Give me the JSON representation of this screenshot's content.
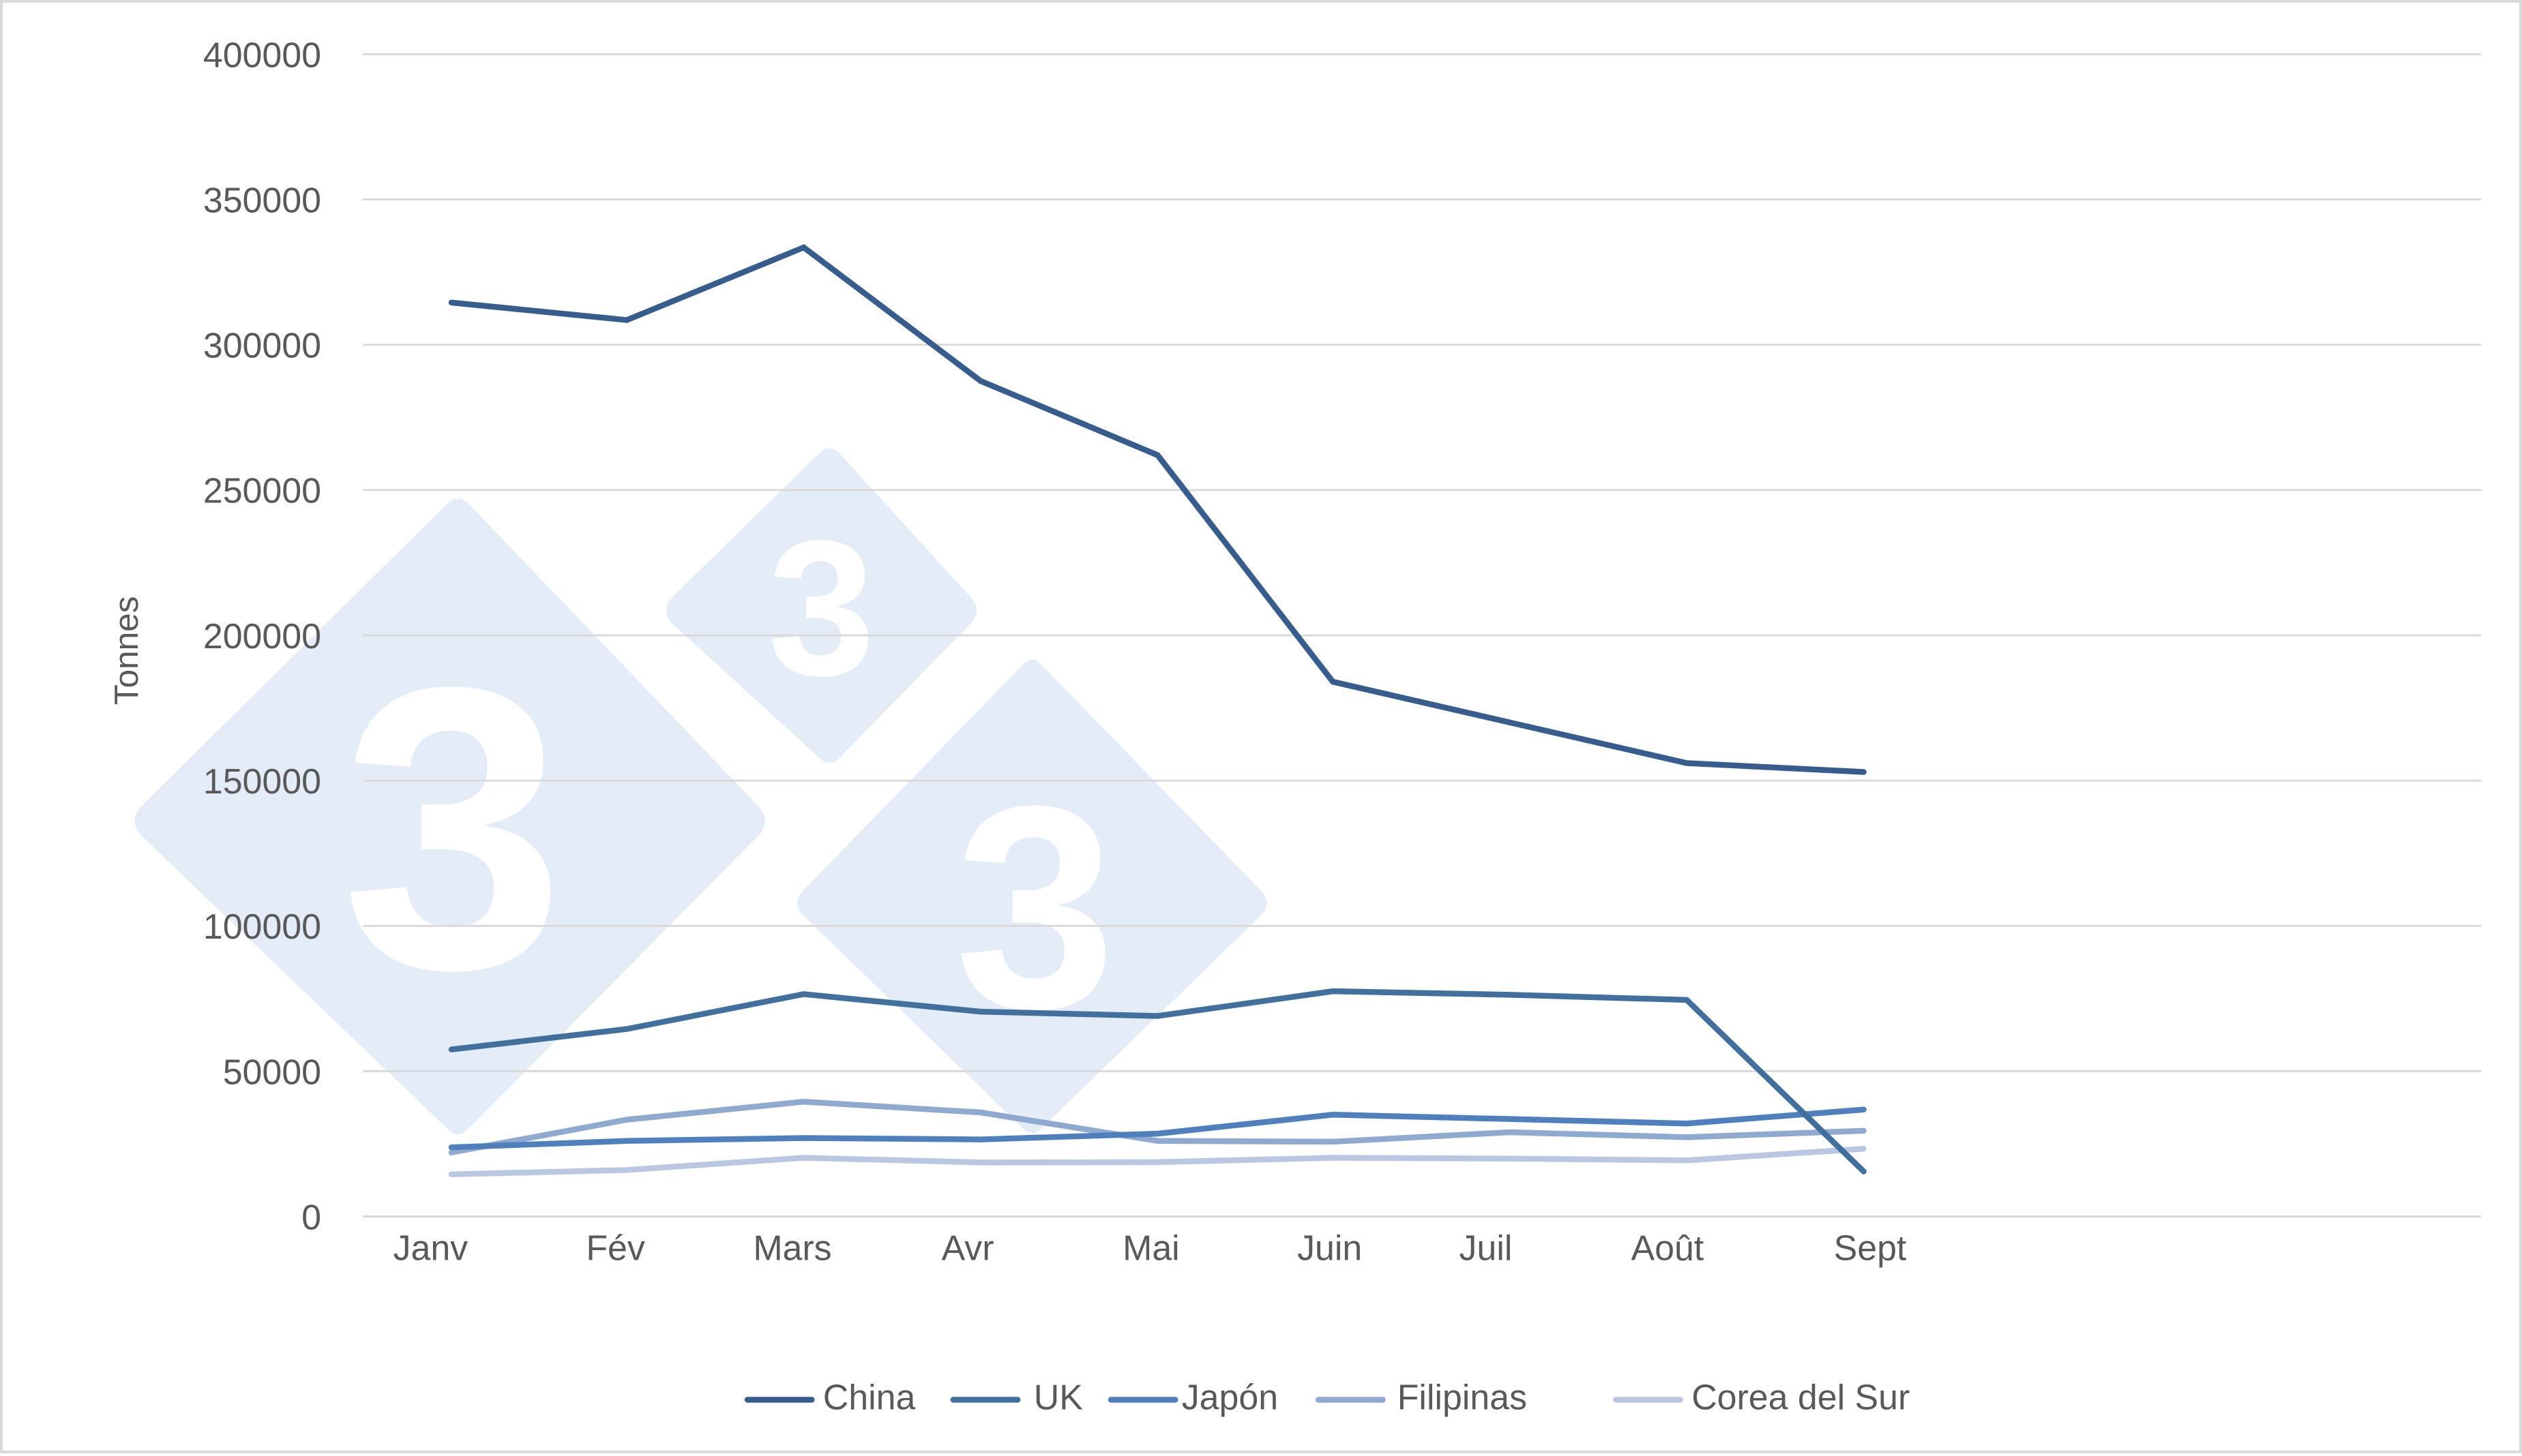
{
  "chart_data": {
    "type": "line",
    "title": "",
    "xlabel": "",
    "ylabel": "Tonnes",
    "ylim": [
      0,
      400000
    ],
    "yticks": [
      0,
      50000,
      100000,
      150000,
      200000,
      250000,
      300000,
      350000,
      400000
    ],
    "ytick_labels": [
      "0",
      "50000",
      "100000",
      "150000",
      "200000",
      "250000",
      "300000",
      "350000",
      "400000"
    ],
    "grid": true,
    "legend_position": "bottom",
    "categories": [
      "Janv",
      "Fév",
      "Mars",
      "Avr",
      "Mai",
      "Juin",
      "Juil",
      "Août",
      "Sept"
    ],
    "series": [
      {
        "name": "China",
        "color": "#375D8E",
        "values": [
          314500,
          308500,
          333500,
          287500,
          262000,
          184000,
          170000,
          156000,
          153000
        ]
      },
      {
        "name": "UK",
        "color": "#41709F",
        "values": [
          57500,
          64500,
          76500,
          70500,
          69000,
          77500,
          76300,
          74500,
          15500
        ]
      },
      {
        "name": "Japón",
        "color": "#4F80BD",
        "values": [
          23800,
          26000,
          27000,
          26500,
          28500,
          35000,
          33500,
          32000,
          36800
        ]
      },
      {
        "name": "Filipinas",
        "color": "#8FA9D1",
        "values": [
          22000,
          33300,
          39500,
          35800,
          26000,
          25700,
          29000,
          27300,
          29500
        ]
      },
      {
        "name": "Corea del Sur",
        "color": "#B9C7E2",
        "values": [
          14500,
          16000,
          20200,
          18600,
          18700,
          20200,
          19900,
          19300,
          23300
        ]
      }
    ]
  },
  "watermark": {
    "glyph": "3",
    "color": "#E4EDF7"
  }
}
